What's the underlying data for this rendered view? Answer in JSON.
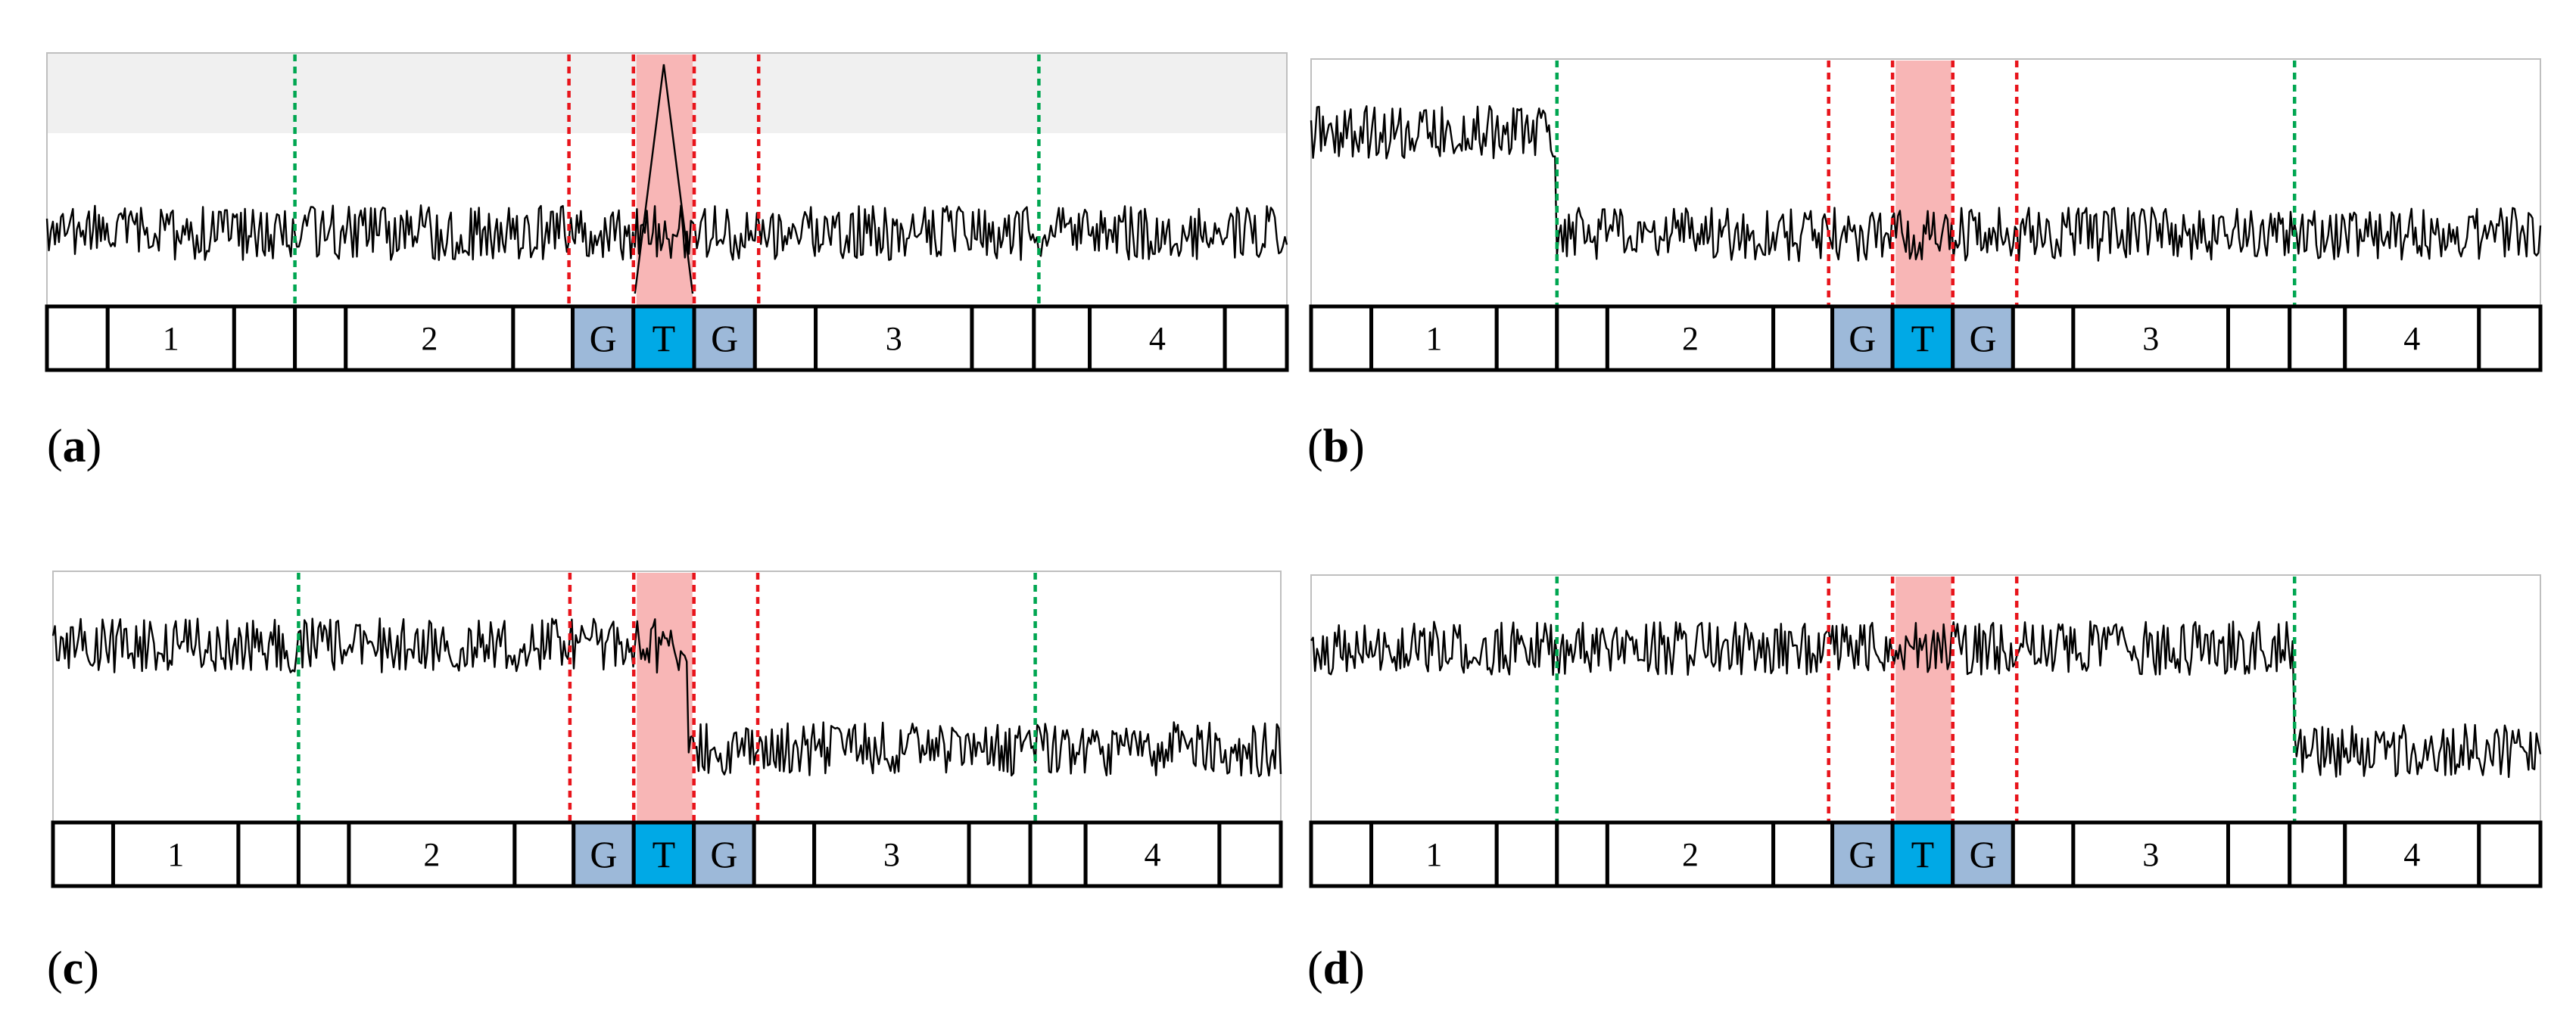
{
  "colors": {
    "signal": "#000000",
    "green_marker": "#00a651",
    "red_marker": "#e8141b",
    "highlight": "#f8b6b6",
    "base_g": "#9db9d9",
    "base_t": "#00a9e6",
    "frame": "#bfbfbf",
    "band": "#f0f0f0"
  },
  "strip": {
    "region_labels": [
      "1",
      "2",
      "3",
      "4"
    ],
    "bases": [
      "G",
      "T",
      "G"
    ]
  },
  "panels": [
    {
      "label": "(a)",
      "signal": "low level with a sharp spike at the T position"
    },
    {
      "label": "(b)",
      "signal": "high level dropping to low at the first green marker"
    },
    {
      "label": "(c)",
      "signal": "high level dropping to low at the end of the T position"
    },
    {
      "label": "(d)",
      "signal": "high level dropping to low at the second green marker"
    }
  ]
}
